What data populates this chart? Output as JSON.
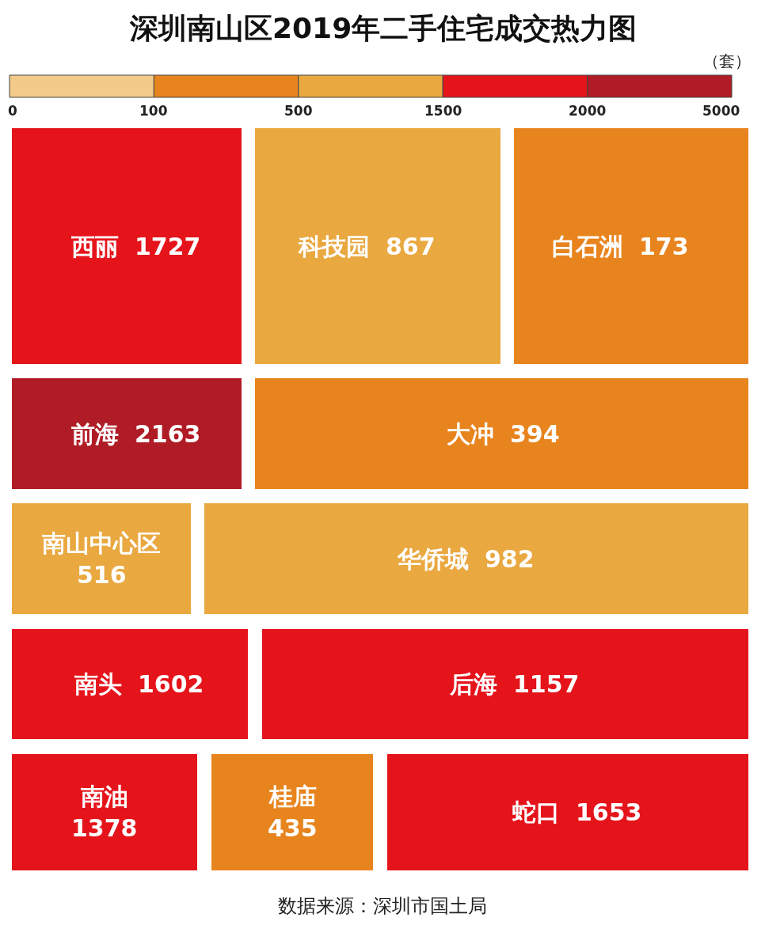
{
  "chart_data": [
    {
      "type": "other",
      "data_labels": true,
      "title": "深圳南山区2019年二手住宅成交热力图",
      "categories": [
        "西丽",
        "科技园",
        "白石洲",
        "前海",
        "大冲",
        "南山中心区",
        "华侨城",
        "南头",
        "后海",
        "南油",
        "桂庙",
        "蛇口"
      ],
      "values": [
        1727,
        867,
        173,
        2163,
        394,
        516,
        982,
        1602,
        1157,
        1378,
        435,
        1653
      ],
      "colors": [
        "#e5141b",
        "#e9a840",
        "#e8841e",
        "#b01c26",
        "#e8841e",
        "#e9a840",
        "#e9a840",
        "#e5141b",
        "#e5141b",
        "#e5141b",
        "#e8841e",
        "#e5141b"
      ],
      "annotations": [
        "数据来源：深圳市国土局"
      ]
    },
    {
      "type": "other",
      "clabel": "（套）",
      "colors": [
        "#f2cb8b",
        "#e8841e",
        "#e9a840",
        "#e5141b",
        "#b01c26"
      ],
      "annotations": [
        "0",
        "100",
        "500",
        "1500",
        "2000",
        "5000"
      ]
    }
  ]
}
